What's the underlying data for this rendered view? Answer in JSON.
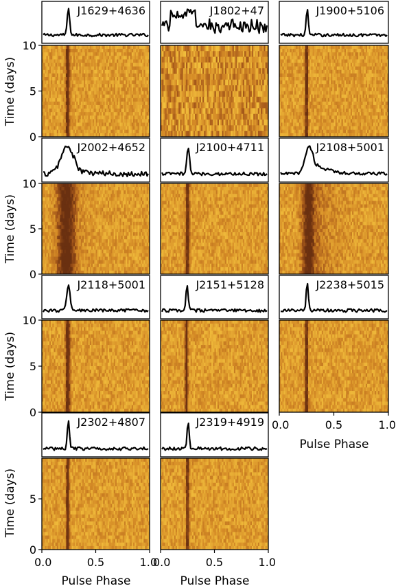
{
  "figure": {
    "ylabel": "Time (days)",
    "xlabel": "Pulse Phase",
    "xticks": [
      "0.0",
      "0.5",
      "1.0"
    ],
    "yticks_full": [
      "0",
      "5",
      "10"
    ],
    "yticks_short": [
      "0",
      "5"
    ]
  },
  "chart_data": {
    "type": "heatmap",
    "description_of_layout": "grid of pulsar panels; each has an integrated pulse profile above a phase-time waterfall",
    "xlim": [
      0.0,
      1.0
    ],
    "ylim": [
      0,
      10
    ],
    "colormap": [
      "#f7e04a",
      "#efb93a",
      "#d48a26",
      "#a4571a",
      "#6a3010"
    ],
    "pulsars": [
      {
        "name": "J1629+4636",
        "peak_phase": 0.24,
        "width": 0.012,
        "snr": "high",
        "days": 10
      },
      {
        "name": "J1802+47",
        "peak_phase": 0.25,
        "width": 0.15,
        "snr": "low",
        "days": 10
      },
      {
        "name": "J1900+5106",
        "peak_phase": 0.25,
        "width": 0.01,
        "snr": "high",
        "days": 10
      },
      {
        "name": "J2002+4652",
        "peak_phase": 0.23,
        "width": 0.06,
        "snr": "medium",
        "days": 10
      },
      {
        "name": "J2100+4711",
        "peak_phase": 0.25,
        "width": 0.012,
        "snr": "high",
        "days": 10
      },
      {
        "name": "J2108+5001",
        "peak_phase": 0.27,
        "width": 0.04,
        "snr": "high",
        "days": 10
      },
      {
        "name": "J2118+5001",
        "peak_phase": 0.24,
        "width": 0.015,
        "snr": "high",
        "days": 10
      },
      {
        "name": "J2151+5128",
        "peak_phase": 0.24,
        "width": 0.01,
        "snr": "high",
        "days": 10
      },
      {
        "name": "J2238+5015",
        "peak_phase": 0.25,
        "width": 0.01,
        "snr": "high",
        "days": 10
      },
      {
        "name": "J2302+4807",
        "peak_phase": 0.24,
        "width": 0.01,
        "snr": "high",
        "days": 9
      },
      {
        "name": "J2319+4919",
        "peak_phase": 0.25,
        "width": 0.01,
        "snr": "high",
        "days": 9
      }
    ]
  }
}
